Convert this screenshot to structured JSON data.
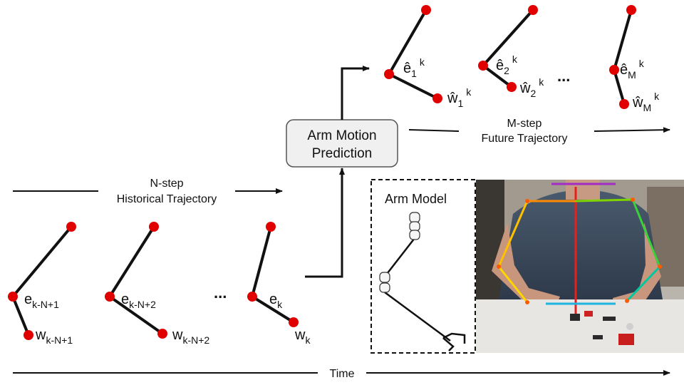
{
  "processor": {
    "line1": "Arm Motion",
    "line2": "Prediction"
  },
  "historical": {
    "line1": "N-step",
    "line2": "Historical Trajectory",
    "poses": [
      {
        "elbow_base": "e",
        "elbow_sub": "k-N+1",
        "wrist_base": "w",
        "wrist_sub": "k-N+1"
      },
      {
        "elbow_base": "e",
        "elbow_sub": "k-N+2",
        "wrist_base": "w",
        "wrist_sub": "k-N+2"
      },
      {
        "elbow_base": "e",
        "elbow_sub": "k",
        "wrist_base": "w",
        "wrist_sub": "k"
      }
    ],
    "ellipsis": "..."
  },
  "future": {
    "line1": "M-step",
    "line2": "Future Trajectory",
    "poses": [
      {
        "elbow_base": "ê",
        "elbow_sub": "1",
        "elbow_sup": "k",
        "wrist_base": "ŵ",
        "wrist_sub": "1",
        "wrist_sup": "k"
      },
      {
        "elbow_base": "ê",
        "elbow_sub": "2",
        "elbow_sup": "k",
        "wrist_base": "ŵ",
        "wrist_sub": "2",
        "wrist_sup": "k"
      },
      {
        "elbow_base": "ê",
        "elbow_sub": "M",
        "elbow_sup": "k",
        "wrist_base": "ŵ",
        "wrist_sub": "M",
        "wrist_sup": "k"
      }
    ],
    "ellipsis": "..."
  },
  "arm_model": {
    "title": "Arm Model"
  },
  "time_axis": {
    "label": "Time"
  },
  "colors": {
    "joint": "#e00000",
    "link": "#111111",
    "box_fill": "#f0f0f0",
    "box_stroke": "#555555"
  }
}
